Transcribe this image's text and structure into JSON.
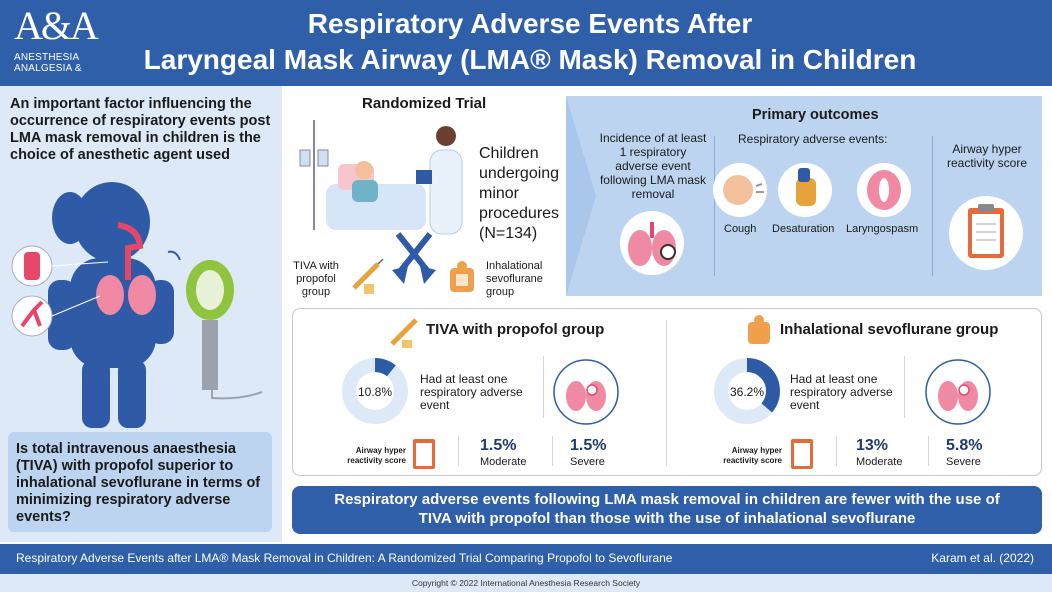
{
  "header": {
    "logo_mark": "A&A",
    "logo_name_1": "ANESTHESIA",
    "logo_name_2": "ANALGESIA &",
    "title_line1": "Respiratory Adverse Events After",
    "title_line2": "Laryngeal Mask Airway (LMA® Mask) Removal in Children"
  },
  "left": {
    "intro": "An important factor influencing the occurrence of respiratory events post LMA mask removal in children is the choice of anesthetic agent used",
    "question": "Is total intravenous anaesthesia (TIVA) with propofol superior to inhalational sevoflurane in terms of minimizing respiratory adverse events?"
  },
  "trial": {
    "heading": "Randomized Trial",
    "children_text": "Children undergoing minor procedures (N=134)",
    "tiva_label": "TIVA with propofol group",
    "inh_label": "Inhalational sevoflurane group"
  },
  "primary": {
    "heading": "Primary outcomes",
    "incidence": "Incidence of at least 1 respiratory adverse event following LMA mask removal",
    "resp_heading": "Respiratory adverse events:",
    "cough": "Cough",
    "desat": "Desaturation",
    "laryngo": "Laryngospasm",
    "hyper": "Airway hyper reactivity score"
  },
  "tiva": {
    "title": "TIVA with propofol group",
    "pct_text": "10.8%",
    "pct_value": 10.8,
    "had": "Had at least one respiratory adverse event",
    "airway_label": "Airway hyper reactivity score",
    "moderate_val": "1.5%",
    "moderate_lbl": "Moderate",
    "severe_val": "1.5%",
    "severe_lbl": "Severe"
  },
  "sevo": {
    "title": "Inhalational sevoflurane group",
    "pct_text": "36.2%",
    "pct_value": 36.2,
    "had": "Had at least one respiratory adverse event",
    "airway_label": "Airway hyper reactivity score",
    "moderate_val": "13%",
    "moderate_lbl": "Moderate",
    "severe_val": "5.8%",
    "severe_lbl": "Severe"
  },
  "conclusion": {
    "line1": "Respiratory adverse events following LMA mask removal in children are fewer with the use of",
    "line2": "TIVA with propofol than those with the use of inhalational sevoflurane"
  },
  "footer": {
    "citation": "Respiratory Adverse Events after LMA® Mask Removal in Children: A Randomized Trial Comparing Propofol to Sevoflurane",
    "author": "Karam et al. (2022)",
    "copyright": "Copyright © 2022 International Anesthesia Research Society"
  },
  "colors": {
    "brand_blue": "#2f5fa8",
    "light_blue": "#dde9f7",
    "panel_blue": "#bcd4f0"
  }
}
